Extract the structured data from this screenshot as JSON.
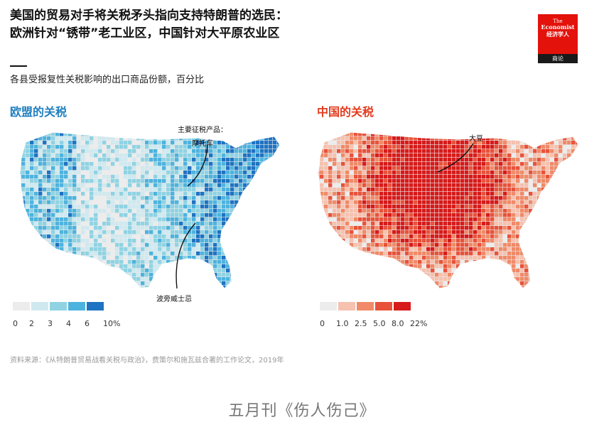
{
  "header": {
    "title_line1": "美国的贸易对手将关税矛头指向支持特朗普的选民：",
    "title_line2": "欧洲针对“锈带”老工业区，中国针对大平原农业区",
    "subtitle": "各县受报复性关税影响的出口商品份额，百分比"
  },
  "logo": {
    "line1": "The",
    "line2": "Economist",
    "line3": "经济学人",
    "line4": "商论",
    "color": "#e3120b"
  },
  "maps": [
    {
      "title": "欧盟的关税",
      "accent": "#1f7fbf",
      "palette": [
        "#ececec",
        "#cfe9ef",
        "#8fd3e3",
        "#4db3de",
        "#1f73c2"
      ],
      "legend_ticks": [
        "0",
        "2",
        "3",
        "4",
        "6",
        "10%"
      ],
      "annotations": [
        {
          "label_line1": "主要征税产品：",
          "label_line2": "摩托车"
        },
        {
          "label_line1": "波旁威士忌"
        }
      ]
    },
    {
      "title": "中国的关税",
      "accent": "#e23b1f",
      "palette": [
        "#ececec",
        "#f6c1ae",
        "#f08a68",
        "#e8523a",
        "#d71a1a"
      ],
      "legend_ticks": [
        "0",
        "1.0",
        "2.5",
        "5.0",
        "8.0",
        "22%"
      ],
      "annotations": [
        {
          "label_line1": "大豆"
        }
      ]
    }
  ],
  "source": "资料来源：《从特朗普贸易战看关税与政治》，费策尔和施瓦兹合著的工作论文，2019年",
  "caption": "五月刊《伤人伤己》"
}
